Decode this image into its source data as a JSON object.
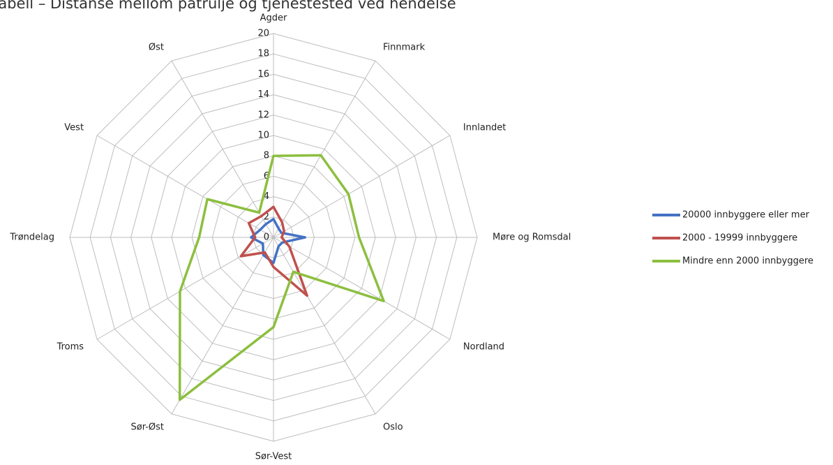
{
  "chart_data": {
    "type": "radar",
    "title": "Tabell – Distanse mellom patrulje og tjenestested ved hendelse",
    "categories": [
      "Agder",
      "Finnmark",
      "Innlandet",
      "Møre og Romsdal",
      "Nordland",
      "Oslo",
      "Sør-Vest",
      "Sør-Øst",
      "Troms",
      "Trøndelag",
      "Vest",
      "Øst"
    ],
    "series": [
      {
        "name": "20000 innbyggere eller mer",
        "color": "#4472c4",
        "values": [
          1.8,
          1,
          0.9,
          3.1,
          1,
          1,
          2.5,
          2,
          1.2,
          2.2,
          1.5,
          1.5
        ]
      },
      {
        "name": "2000 - 19999 innbyggere",
        "color": "#c0504d",
        "values": [
          3,
          1.7,
          1.2,
          0.8,
          1.8,
          6.6,
          2.9,
          1.7,
          3.7,
          1.8,
          2.8,
          2.4
        ]
      },
      {
        "name": "Mindre enn 2000 innbyggere",
        "color": "#8cbf3f",
        "values": [
          8,
          9.3,
          8.5,
          8.4,
          12.5,
          3.9,
          8.8,
          18.4,
          10.6,
          7.3,
          7.5,
          2.8
        ]
      }
    ],
    "ylim": [
      0,
      20
    ],
    "yticks": [
      0,
      2,
      4,
      6,
      8,
      10,
      12,
      14,
      16,
      18,
      20
    ],
    "grid": true,
    "legend": "right"
  }
}
